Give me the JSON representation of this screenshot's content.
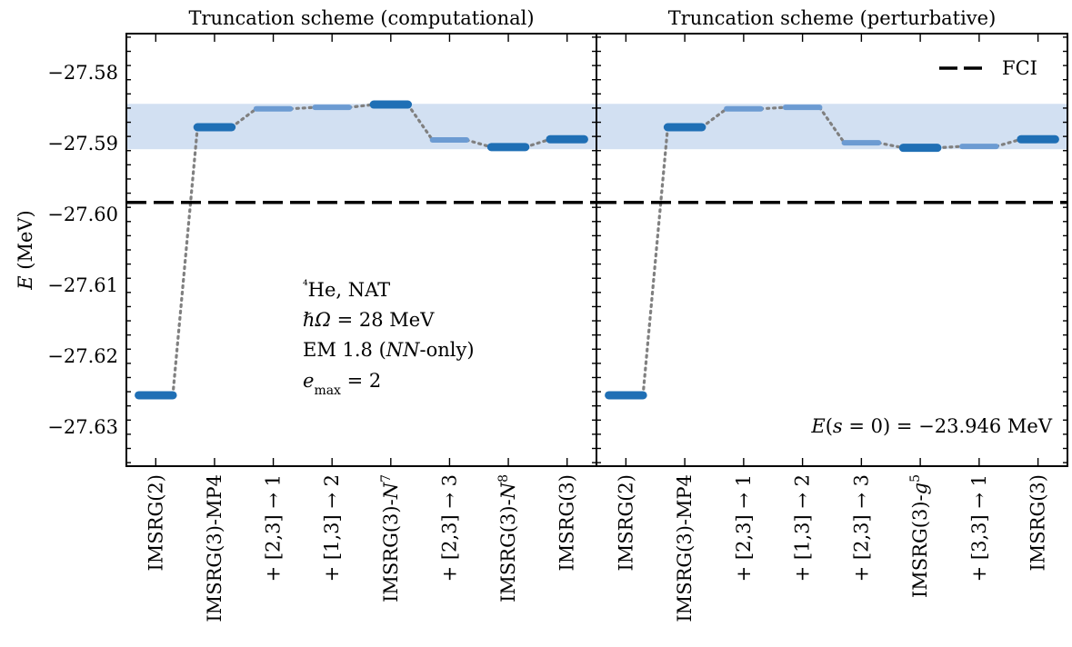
{
  "chart_data": [
    {
      "type": "line",
      "title": "Truncation scheme (computational)",
      "ylabel": "E (MeV)",
      "ylim": [
        -27.6355,
        -27.5745
      ],
      "yticks": [
        "−27.58",
        "−27.59",
        "−27.60",
        "−27.61",
        "−27.62",
        "−27.63"
      ],
      "categories": [
        "IMSRG(2)",
        "IMSRG(3)-MP4",
        "+ [2,3] → 1",
        "+ [1,3] → 2",
        "IMSRG(3)-N⁷",
        "+ [2,3] → 3",
        "IMSRG(3)-N⁸",
        "IMSRG(3)"
      ],
      "values": [
        -27.6255,
        -27.5877,
        -27.5851,
        -27.5849,
        -27.5845,
        -27.5895,
        -27.5905,
        -27.5894
      ],
      "primary": [
        true,
        true,
        false,
        false,
        true,
        false,
        true,
        true
      ],
      "fci": -27.5983,
      "band": [
        -27.5908,
        -27.5844
      ],
      "annotation": [
        "⁴He, NAT",
        "ℏΩ = 28 MeV",
        "EM 1.8 (NN-only)",
        "e_max = 2"
      ]
    },
    {
      "type": "line",
      "title": "Truncation scheme (perturbative)",
      "ylim": [
        -27.6355,
        -27.5745
      ],
      "categories": [
        "IMSRG(2)",
        "IMSRG(3)-MP4",
        "+ [2,3] → 1",
        "+ [1,3] → 2",
        "+ [2,3] → 3",
        "IMSRG(3)-g⁵",
        "+ [3,3] → 1",
        "IMSRG(3)"
      ],
      "values": [
        -27.6255,
        -27.5877,
        -27.5851,
        -27.5849,
        -27.5899,
        -27.5906,
        -27.5904,
        -27.5894
      ],
      "primary": [
        true,
        true,
        false,
        false,
        false,
        true,
        false,
        true
      ],
      "fci": -27.5983,
      "band": [
        -27.5908,
        -27.5844
      ],
      "legend": [
        {
          "name": "FCI",
          "style": "dashed-black"
        }
      ],
      "legend_position": "top-right",
      "annotation": [
        "E(s = 0) = −23.946 MeV"
      ]
    }
  ],
  "colors": {
    "primary_marker": "#1f6fb5",
    "secondary_marker": "#6c9bd2",
    "band": "#d2e0f2",
    "connector": "#808080",
    "fci_line": "#000000"
  }
}
